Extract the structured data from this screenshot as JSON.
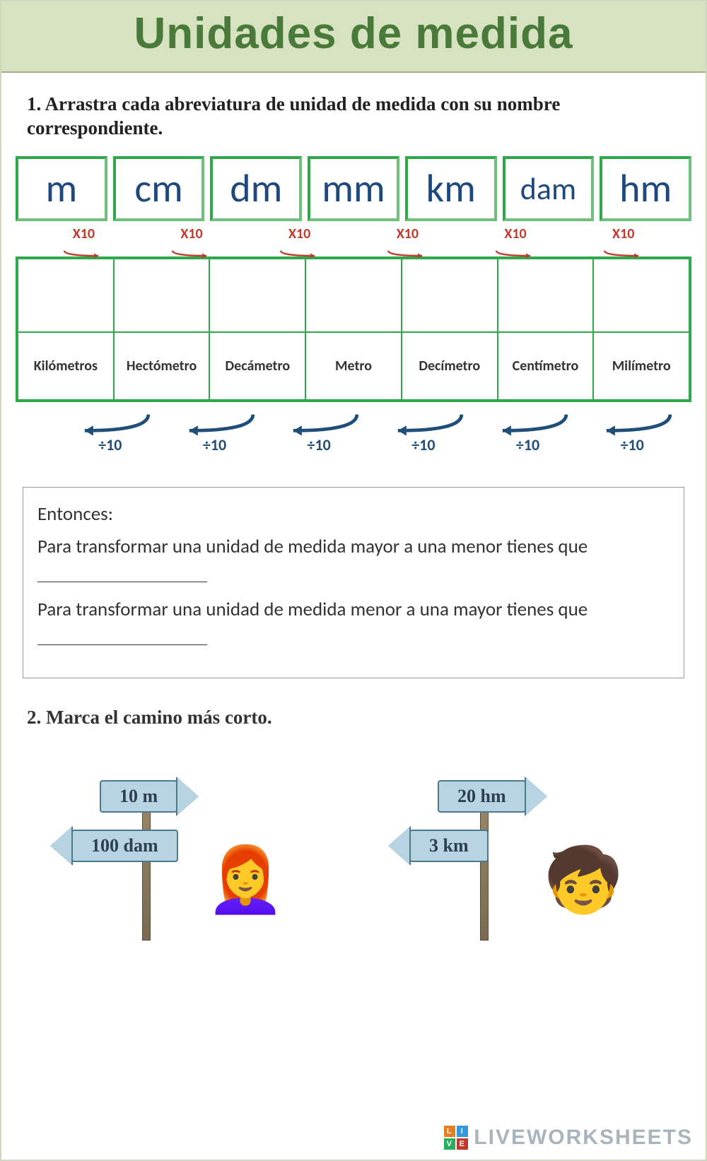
{
  "title": "Unidades de medida",
  "instruction1": "1. Arrastra cada abreviatura de unidad de medida con su nombre correspondiente.",
  "abbrevs": [
    "m",
    "cm",
    "dm",
    "mm",
    "km",
    "dam",
    "hm"
  ],
  "multiply_label": "X10",
  "multiply_count": 6,
  "unit_names": [
    "Kilómetros",
    "Hectómetro",
    "Decámetro",
    "Metro",
    "Decímetro",
    "Centímetro",
    "Milímetro"
  ],
  "divide_label": "÷10",
  "divide_count": 6,
  "colors": {
    "title_bg": "#d6e2c0",
    "title_fg": "#4a7a3a",
    "box_border": "#2fa84a",
    "abbrev_text": "#1f497d",
    "mul_arrow": "#c0392b",
    "div_arrow": "#1f4e79",
    "sign_bg": "#b8d4e3",
    "sign_border": "#4a7a8c"
  },
  "explain": {
    "head": "Entonces:",
    "line1a": "Para transformar una unidad de medida mayor a una  menor tienes que ",
    "line2a": "Para transformar una unidad de medida menor a una  mayor tienes que "
  },
  "instruction2": "2. Marca el camino más corto.",
  "sign_groups": [
    {
      "top": "10 m",
      "bottom": "100 dam",
      "figure": "👩‍🦰"
    },
    {
      "top": "20 hm",
      "bottom": "3 km",
      "figure": "🧒"
    }
  ],
  "watermark": {
    "logo": [
      "L",
      "I",
      "V",
      "E"
    ],
    "text": "LIVEWORKSHEETS"
  }
}
